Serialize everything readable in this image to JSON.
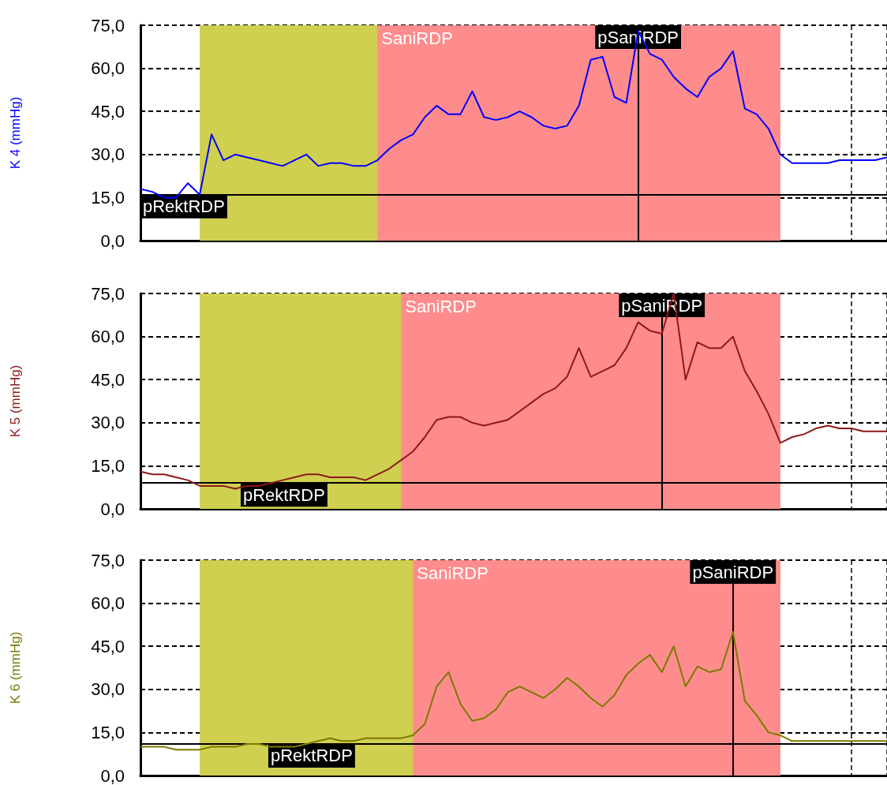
{
  "chart_data": [
    {
      "type": "line",
      "ylabel": "K 4 (mmHg)",
      "categories": [
        null,
        null,
        null,
        null,
        null,
        null,
        null,
        null,
        null,
        null,
        null,
        null,
        null,
        null,
        null,
        null,
        null,
        null,
        null,
        null,
        null,
        null,
        null,
        null,
        null,
        null,
        null,
        null,
        null,
        null,
        null,
        null,
        null,
        null,
        null,
        null,
        null,
        null,
        null,
        null,
        null,
        null,
        null,
        null,
        null,
        null,
        null,
        null,
        null,
        null,
        null,
        null,
        null,
        null,
        null,
        null,
        null,
        null,
        null,
        null,
        null,
        null,
        null,
        null
      ],
      "ylim": [
        0,
        75
      ],
      "yticks": [
        {
          "value": 0,
          "label": "0,0"
        },
        {
          "value": 15,
          "label": "15,0"
        },
        {
          "value": 30,
          "label": "30,0"
        },
        {
          "value": 45,
          "label": "45,0"
        },
        {
          "value": 60,
          "label": "60,0"
        },
        {
          "value": 75,
          "label": "75,0"
        }
      ],
      "tick_labels": "y",
      "grid": true,
      "marker": "none",
      "line_style": "solid",
      "series": [
        {
          "color": "#0000ff",
          "values": [
            18,
            17,
            15,
            15,
            20,
            16,
            37,
            28,
            30,
            29,
            28,
            27,
            26,
            28,
            30,
            26,
            27,
            27,
            26,
            26,
            28,
            32,
            35,
            37,
            43,
            47,
            44,
            44,
            52,
            43,
            42,
            43,
            45,
            43,
            40,
            39,
            40,
            47,
            63,
            64,
            50,
            48,
            73,
            65,
            63,
            57,
            53,
            50,
            57,
            60,
            66,
            46,
            44,
            39,
            30,
            27,
            27,
            27,
            27,
            28,
            28,
            28,
            28,
            29
          ]
        }
      ],
      "annotations": [
        "SaniRDP"
      ],
      "ref_lines": [
        {
          "axis": "y",
          "value": 16,
          "label": "pRektRDP",
          "color": "#000000"
        },
        {
          "axis": "x",
          "label": "pSaniRDP",
          "color": "#000000"
        }
      ]
    },
    {
      "type": "line",
      "ylabel": "K 5 (mmHg)",
      "categories": [
        null,
        null,
        null,
        null,
        null,
        null,
        null,
        null,
        null,
        null,
        null,
        null,
        null,
        null,
        null,
        null,
        null,
        null,
        null,
        null,
        null,
        null,
        null,
        null,
        null,
        null,
        null,
        null,
        null,
        null,
        null,
        null,
        null,
        null,
        null,
        null,
        null,
        null,
        null,
        null,
        null,
        null,
        null,
        null,
        null,
        null,
        null,
        null,
        null,
        null,
        null,
        null,
        null,
        null,
        null,
        null,
        null,
        null,
        null,
        null,
        null,
        null,
        null,
        null
      ],
      "ylim": [
        0,
        75
      ],
      "yticks": [
        {
          "value": 0,
          "label": "0,0"
        },
        {
          "value": 15,
          "label": "15,0"
        },
        {
          "value": 30,
          "label": "30,0"
        },
        {
          "value": 45,
          "label": "45,0"
        },
        {
          "value": 60,
          "label": "60,0"
        },
        {
          "value": 75,
          "label": "75,0"
        }
      ],
      "tick_labels": "y",
      "grid": true,
      "marker": "none",
      "line_style": "solid",
      "series": [
        {
          "color": "#8b1a1a",
          "values": [
            13,
            12,
            12,
            11,
            10,
            8,
            8,
            8,
            7,
            8,
            8,
            9,
            10,
            11,
            12,
            12,
            11,
            11,
            11,
            10,
            12,
            14,
            17,
            20,
            25,
            31,
            32,
            32,
            30,
            29,
            30,
            31,
            34,
            37,
            40,
            42,
            46,
            56,
            46,
            48,
            50,
            56,
            65,
            62,
            61,
            75,
            45,
            58,
            56,
            56,
            60,
            48,
            41,
            33,
            23,
            25,
            26,
            28,
            29,
            28,
            28,
            27,
            27,
            27
          ]
        }
      ],
      "annotations": [
        "SaniRDP"
      ],
      "ref_lines": [
        {
          "axis": "y",
          "value": 9,
          "label": "pRektRDP",
          "color": "#000000"
        },
        {
          "axis": "x",
          "label": "pSaniRDP",
          "color": "#000000"
        }
      ]
    },
    {
      "type": "line",
      "ylabel": "K 6 (mmHg)",
      "categories": [
        null,
        null,
        null,
        null,
        null,
        null,
        null,
        null,
        null,
        null,
        null,
        null,
        null,
        null,
        null,
        null,
        null,
        null,
        null,
        null,
        null,
        null,
        null,
        null,
        null,
        null,
        null,
        null,
        null,
        null,
        null,
        null,
        null,
        null,
        null,
        null,
        null,
        null,
        null,
        null,
        null,
        null,
        null,
        null,
        null,
        null,
        null,
        null,
        null,
        null,
        null,
        null,
        null,
        null,
        null,
        null,
        null,
        null,
        null,
        null,
        null,
        null,
        null,
        null
      ],
      "ylim": [
        0,
        75
      ],
      "yticks": [
        {
          "value": 0,
          "label": "0,0"
        },
        {
          "value": 15,
          "label": "15,0"
        },
        {
          "value": 30,
          "label": "30,0"
        },
        {
          "value": 45,
          "label": "45,0"
        },
        {
          "value": 60,
          "label": "60,0"
        },
        {
          "value": 75,
          "label": "75,0"
        }
      ],
      "tick_labels": "y",
      "grid": true,
      "marker": "none",
      "line_style": "solid",
      "series": [
        {
          "color": "#7a7a00",
          "values": [
            10,
            10,
            10,
            9,
            9,
            9,
            10,
            10,
            10,
            11,
            11,
            10,
            10,
            10,
            11,
            12,
            13,
            12,
            12,
            13,
            13,
            13,
            13,
            14,
            18,
            31,
            36,
            25,
            19,
            20,
            23,
            29,
            31,
            29,
            27,
            30,
            34,
            31,
            27,
            24,
            28,
            35,
            39,
            42,
            36,
            45,
            31,
            38,
            36,
            37,
            50,
            26,
            21,
            15,
            14,
            12,
            12,
            12,
            12,
            12,
            12,
            12,
            12,
            12
          ]
        }
      ],
      "annotations": [
        "SaniRDP"
      ],
      "ref_lines": [
        {
          "axis": "y",
          "value": 11,
          "label": "pRektRDP",
          "color": "#000000"
        },
        {
          "axis": "x",
          "label": "pSaniRDP",
          "color": "#000000"
        }
      ]
    }
  ]
}
